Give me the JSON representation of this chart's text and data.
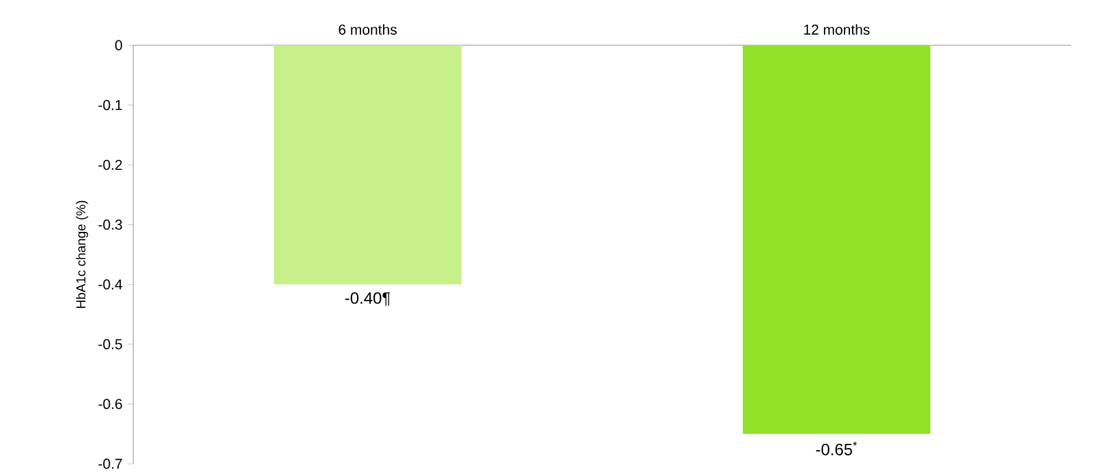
{
  "chart_data": {
    "type": "bar",
    "ylabel": "HbA1c change (%)",
    "categories": [
      "6 months",
      "12 months"
    ],
    "values": [
      -0.4,
      -0.65
    ],
    "colors": [
      "#c6f08a",
      "#92e22a"
    ],
    "value_labels": [
      "-0.40¶",
      "-0.65$^{*}$"
    ],
    "ylim": [
      -0.7,
      0
    ],
    "yticks": [
      0,
      -0.1,
      -0.2,
      -0.3,
      -0.4,
      -0.5,
      -0.6,
      -0.7
    ],
    "grid": false
  }
}
